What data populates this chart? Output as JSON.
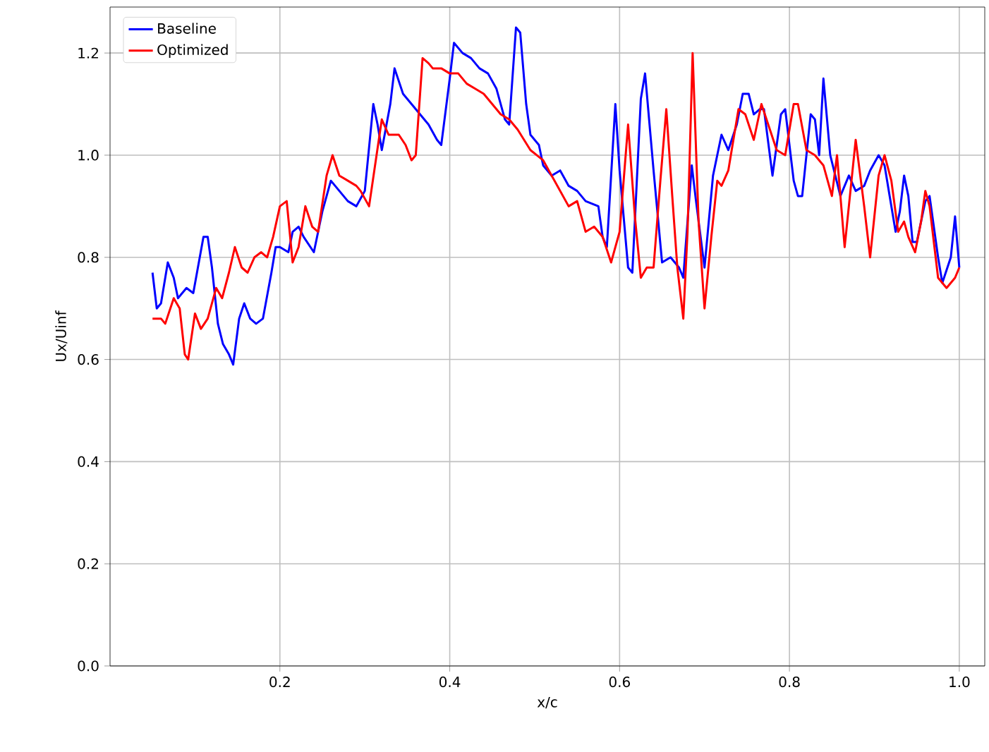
{
  "chart_data": {
    "type": "line",
    "xlabel": "x/c",
    "ylabel": "Ux/Uinf",
    "xlim": [
      0.0,
      1.03
    ],
    "ylim": [
      0.0,
      1.29
    ],
    "xticks": [
      0.2,
      0.4,
      0.6,
      0.8,
      {
        "value": 1,
        "label": "1.0"
      }
    ],
    "yticks": [
      {
        "value": 0,
        "label": "0.0"
      },
      0.2,
      0.4,
      0.6,
      0.8,
      {
        "value": 1,
        "label": "1.0"
      },
      1.2
    ],
    "grid": true,
    "legend": "top left",
    "marker": "none",
    "line_style": "solid",
    "series": [
      {
        "name": "Baseline",
        "color": "#0000ff",
        "x": [
          0.05,
          0.055,
          0.06,
          0.068,
          0.075,
          0.08,
          0.09,
          0.098,
          0.11,
          0.115,
          0.12,
          0.127,
          0.133,
          0.14,
          0.145,
          0.152,
          0.158,
          0.165,
          0.172,
          0.18,
          0.19,
          0.195,
          0.2,
          0.21,
          0.215,
          0.222,
          0.228,
          0.24,
          0.25,
          0.26,
          0.27,
          0.28,
          0.29,
          0.3,
          0.31,
          0.315,
          0.32,
          0.33,
          0.335,
          0.345,
          0.355,
          0.365,
          0.375,
          0.385,
          0.39,
          0.4,
          0.405,
          0.415,
          0.425,
          0.435,
          0.445,
          0.455,
          0.465,
          0.47,
          0.478,
          0.483,
          0.49,
          0.495,
          0.505,
          0.51,
          0.52,
          0.53,
          0.54,
          0.55,
          0.56,
          0.575,
          0.58,
          0.585,
          0.595,
          0.6,
          0.61,
          0.615,
          0.625,
          0.63,
          0.64,
          0.65,
          0.66,
          0.67,
          0.675,
          0.685,
          0.69,
          0.7,
          0.71,
          0.72,
          0.728,
          0.738,
          0.745,
          0.752,
          0.758,
          0.765,
          0.77,
          0.78,
          0.79,
          0.795,
          0.805,
          0.81,
          0.815,
          0.825,
          0.83,
          0.835,
          0.84,
          0.848,
          0.86,
          0.87,
          0.878,
          0.888,
          0.895,
          0.905,
          0.912,
          0.918,
          0.925,
          0.93,
          0.935,
          0.94,
          0.945,
          0.95,
          0.96,
          0.965,
          0.975,
          0.98,
          0.99,
          0.995,
          1.0
        ],
        "values": [
          0.77,
          0.7,
          0.71,
          0.79,
          0.76,
          0.72,
          0.74,
          0.73,
          0.84,
          0.84,
          0.78,
          0.67,
          0.63,
          0.61,
          0.59,
          0.68,
          0.71,
          0.68,
          0.67,
          0.68,
          0.77,
          0.82,
          0.82,
          0.81,
          0.85,
          0.86,
          0.84,
          0.81,
          0.89,
          0.95,
          0.93,
          0.91,
          0.9,
          0.93,
          1.1,
          1.06,
          1.01,
          1.1,
          1.17,
          1.12,
          1.1,
          1.08,
          1.06,
          1.03,
          1.02,
          1.15,
          1.22,
          1.2,
          1.19,
          1.17,
          1.16,
          1.13,
          1.07,
          1.06,
          1.25,
          1.24,
          1.1,
          1.04,
          1.02,
          0.98,
          0.96,
          0.97,
          0.94,
          0.93,
          0.91,
          0.9,
          0.84,
          0.82,
          1.1,
          0.97,
          0.78,
          0.77,
          1.11,
          1.16,
          0.97,
          0.79,
          0.8,
          0.78,
          0.76,
          0.98,
          0.91,
          0.78,
          0.96,
          1.04,
          1.01,
          1.06,
          1.12,
          1.12,
          1.08,
          1.09,
          1.09,
          0.96,
          1.08,
          1.09,
          0.95,
          0.92,
          0.92,
          1.08,
          1.07,
          1.0,
          1.15,
          1.0,
          0.92,
          0.96,
          0.93,
          0.94,
          0.97,
          1.0,
          0.98,
          0.92,
          0.85,
          0.89,
          0.96,
          0.92,
          0.83,
          0.83,
          0.91,
          0.92,
          0.8,
          0.75,
          0.8,
          0.88,
          0.78
        ]
      },
      {
        "name": "Optimized",
        "color": "#ff0000",
        "x": [
          0.05,
          0.06,
          0.065,
          0.075,
          0.082,
          0.088,
          0.092,
          0.1,
          0.107,
          0.115,
          0.125,
          0.132,
          0.14,
          0.147,
          0.155,
          0.162,
          0.17,
          0.178,
          0.185,
          0.192,
          0.2,
          0.208,
          0.215,
          0.222,
          0.23,
          0.238,
          0.245,
          0.255,
          0.262,
          0.27,
          0.28,
          0.29,
          0.295,
          0.305,
          0.32,
          0.328,
          0.34,
          0.348,
          0.355,
          0.36,
          0.368,
          0.375,
          0.38,
          0.39,
          0.4,
          0.41,
          0.42,
          0.43,
          0.44,
          0.45,
          0.46,
          0.47,
          0.48,
          0.495,
          0.51,
          0.52,
          0.53,
          0.54,
          0.55,
          0.56,
          0.57,
          0.58,
          0.59,
          0.6,
          0.61,
          0.618,
          0.625,
          0.632,
          0.64,
          0.648,
          0.655,
          0.662,
          0.668,
          0.675,
          0.68,
          0.686,
          0.693,
          0.7,
          0.708,
          0.715,
          0.72,
          0.728,
          0.74,
          0.748,
          0.758,
          0.767,
          0.775,
          0.785,
          0.795,
          0.8,
          0.805,
          0.81,
          0.82,
          0.83,
          0.84,
          0.85,
          0.856,
          0.865,
          0.878,
          0.888,
          0.895,
          0.905,
          0.912,
          0.92,
          0.928,
          0.935,
          0.94,
          0.948,
          0.955,
          0.96,
          0.965,
          0.975,
          0.985,
          0.995,
          1.0
        ],
        "values": [
          0.68,
          0.68,
          0.67,
          0.72,
          0.7,
          0.61,
          0.6,
          0.69,
          0.66,
          0.68,
          0.74,
          0.72,
          0.77,
          0.82,
          0.78,
          0.77,
          0.8,
          0.81,
          0.8,
          0.84,
          0.9,
          0.91,
          0.79,
          0.82,
          0.9,
          0.86,
          0.85,
          0.96,
          1.0,
          0.96,
          0.95,
          0.94,
          0.93,
          0.9,
          1.07,
          1.04,
          1.04,
          1.02,
          0.99,
          1.0,
          1.19,
          1.18,
          1.17,
          1.17,
          1.16,
          1.16,
          1.14,
          1.13,
          1.12,
          1.1,
          1.08,
          1.07,
          1.05,
          1.01,
          0.99,
          0.96,
          0.93,
          0.9,
          0.91,
          0.85,
          0.86,
          0.84,
          0.79,
          0.85,
          1.06,
          0.88,
          0.76,
          0.78,
          0.78,
          0.95,
          1.09,
          0.92,
          0.78,
          0.68,
          0.85,
          1.2,
          0.87,
          0.7,
          0.84,
          0.95,
          0.94,
          0.97,
          1.09,
          1.08,
          1.03,
          1.1,
          1.06,
          1.01,
          1.0,
          1.05,
          1.1,
          1.1,
          1.01,
          1.0,
          0.98,
          0.92,
          1.0,
          0.82,
          1.03,
          0.9,
          0.8,
          0.96,
          1.0,
          0.95,
          0.85,
          0.87,
          0.84,
          0.81,
          0.87,
          0.93,
          0.9,
          0.76,
          0.74,
          0.76,
          0.78
        ]
      }
    ]
  }
}
